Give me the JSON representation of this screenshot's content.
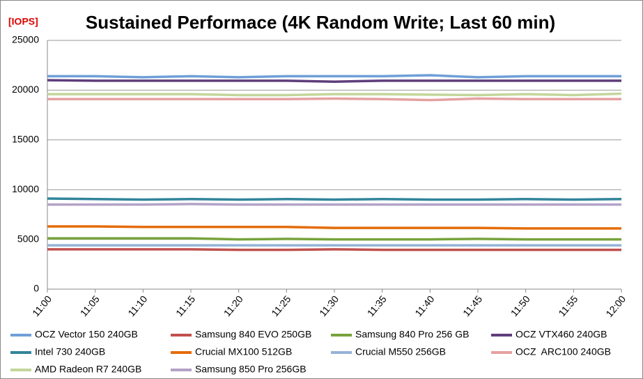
{
  "chart_data": {
    "type": "line",
    "title": "Sustained Performace (4K Random Write; Last 60 min)",
    "y_label": "[IOPS]",
    "categories": [
      "11:00",
      "11:05",
      "11:10",
      "11:15",
      "11:20",
      "11:25",
      "11:30",
      "11:35",
      "11:40",
      "11:45",
      "11:50",
      "11:55",
      "12:00"
    ],
    "ylim": [
      0,
      25000
    ],
    "yticks": [
      0,
      5000,
      10000,
      15000,
      20000,
      25000
    ],
    "grid": true,
    "legend": "bottom",
    "series": [
      {
        "name": "OCZ Vector 150 240GB",
        "color": "#6f9fd8",
        "values": [
          21400,
          21400,
          21300,
          21400,
          21300,
          21400,
          21400,
          21400,
          21500,
          21300,
          21400,
          21400,
          21400
        ]
      },
      {
        "name": "Samsung 840 EVO 250GB",
        "color": "#c0504d",
        "values": [
          4000,
          4000,
          4000,
          4000,
          3950,
          3950,
          4000,
          3950,
          3950,
          3950,
          3950,
          3950,
          3950
        ]
      },
      {
        "name": "Samsung 840 Pro 256 GB",
        "color": "#77a33c",
        "values": [
          5100,
          5100,
          5100,
          5100,
          5000,
          5050,
          5000,
          5000,
          5000,
          5050,
          5000,
          5000,
          5000
        ]
      },
      {
        "name": "OCZ VTX460 240GB",
        "color": "#5f3d7a",
        "values": [
          21000,
          20950,
          20950,
          20950,
          20950,
          20950,
          20850,
          20950,
          20950,
          20950,
          20950,
          20950,
          20950
        ]
      },
      {
        "name": "Intel 730 240GB",
        "color": "#31849b",
        "values": [
          9100,
          9050,
          9000,
          9050,
          9000,
          9050,
          9000,
          9050,
          9000,
          9000,
          9050,
          9000,
          9050
        ]
      },
      {
        "name": "Crucial MX100 512GB",
        "color": "#e46c0a",
        "values": [
          6300,
          6300,
          6250,
          6250,
          6250,
          6250,
          6150,
          6150,
          6150,
          6150,
          6100,
          6100,
          6100
        ]
      },
      {
        "name": "Crucial M550 256GB",
        "color": "#95b3d7",
        "values": [
          4400,
          4400,
          4400,
          4400,
          4400,
          4400,
          4400,
          4400,
          4400,
          4400,
          4400,
          4400,
          4400
        ]
      },
      {
        "name": "OCZ  ARC100 240GB",
        "color": "#e6a0a0",
        "values": [
          19100,
          19100,
          19100,
          19100,
          19100,
          19100,
          19150,
          19100,
          19000,
          19150,
          19100,
          19100,
          19100
        ]
      },
      {
        "name": "AMD Radeon R7 240GB",
        "color": "#c3d69b",
        "values": [
          19600,
          19600,
          19600,
          19600,
          19500,
          19500,
          19600,
          19600,
          19550,
          19500,
          19600,
          19500,
          19650
        ]
      },
      {
        "name": "Samsung 850 Pro 256GB",
        "color": "#b3a2c7",
        "values": [
          8500,
          8500,
          8500,
          8550,
          8500,
          8500,
          8500,
          8500,
          8500,
          8500,
          8500,
          8500,
          8500
        ]
      }
    ]
  }
}
